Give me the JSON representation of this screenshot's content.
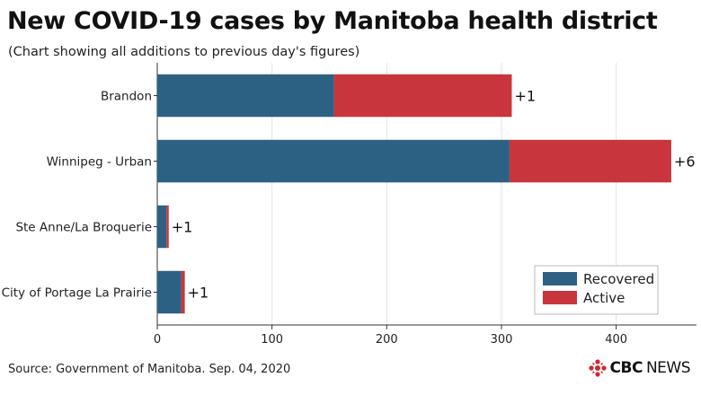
{
  "header": {
    "title": "New COVID-19 cases by Manitoba health district",
    "subtitle": "(Chart showing all additions to previous day's figures)"
  },
  "footer": {
    "source": "Source: Government of Manitoba. Sep. 04, 2020",
    "brand_cbc": "CBC",
    "brand_news": "NEWS",
    "brand_icon": "cbc-gem-icon"
  },
  "chart_data": {
    "type": "bar",
    "orientation": "horizontal",
    "stacked": true,
    "categories": [
      "Brandon",
      "Winnipeg - Urban",
      "Ste Anne/La Broquerie",
      "City of Portage La Prairie"
    ],
    "series": [
      {
        "name": "Recovered",
        "color": "#2d6184",
        "values": [
          154,
          307,
          8,
          21
        ]
      },
      {
        "name": "Active",
        "color": "#c9353c",
        "values": [
          155,
          141,
          2,
          3
        ]
      }
    ],
    "annotations": [
      "+1",
      "+6",
      "+1",
      "+1"
    ],
    "xlim": [
      0,
      470
    ],
    "xticks": [
      0,
      100,
      200,
      300,
      400
    ],
    "grid": true,
    "legend_position": "bottom-right"
  }
}
